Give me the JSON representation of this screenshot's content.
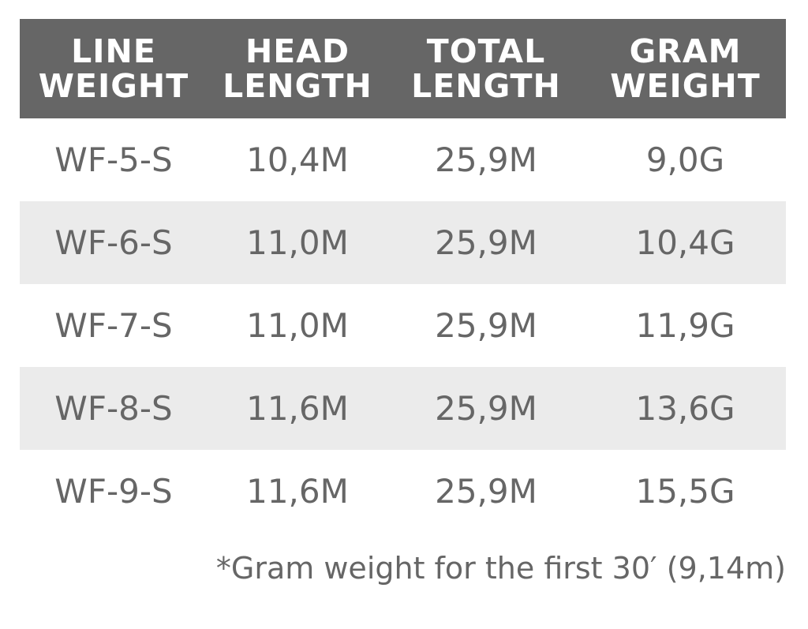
{
  "table": {
    "headers": [
      [
        "LINE",
        "WEIGHT"
      ],
      [
        "HEAD",
        "LENGTH"
      ],
      [
        "TOTAL",
        "LENGTH"
      ],
      [
        "GRAM",
        "WEIGHT"
      ]
    ],
    "rows": [
      [
        "WF-5-S",
        "10,4M",
        "25,9M",
        "9,0G"
      ],
      [
        "WF-6-S",
        "11,0M",
        "25,9M",
        "10,4G"
      ],
      [
        "WF-7-S",
        "11,0M",
        "25,9M",
        "11,9G"
      ],
      [
        "WF-8-S",
        "11,6M",
        "25,9M",
        "13,6G"
      ],
      [
        "WF-9-S",
        "11,6M",
        "25,9M",
        "15,5G"
      ]
    ]
  },
  "footnote": "*Gram weight for the first 30′ (9,14m)",
  "colors": {
    "header_bg": "#666666",
    "header_text": "#ffffff",
    "body_text": "#666666",
    "alt_row": "#ebebeb"
  }
}
